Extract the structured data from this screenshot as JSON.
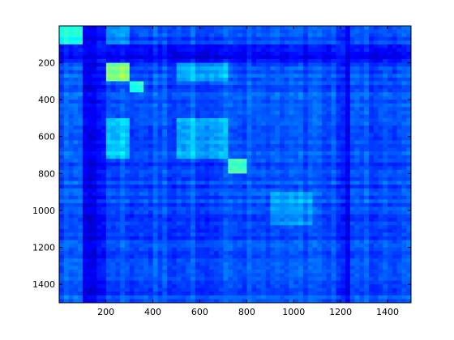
{
  "chart_data": {
    "type": "heatmap",
    "title": "",
    "xlabel": "",
    "ylabel": "",
    "xlim": [
      1,
      1500
    ],
    "ylim": [
      1,
      1500
    ],
    "y_axis_direction": "reversed",
    "grid": false,
    "colormap": "jet",
    "xticks": [
      {
        "value": 200,
        "label": "200"
      },
      {
        "value": 400,
        "label": "400"
      },
      {
        "value": 600,
        "label": "600"
      },
      {
        "value": 800,
        "label": "800"
      },
      {
        "value": 1000,
        "label": "1000"
      },
      {
        "value": 1200,
        "label": "1200"
      },
      {
        "value": 1400,
        "label": "1400"
      }
    ],
    "yticks": [
      {
        "value": 200,
        "label": "200"
      },
      {
        "value": 400,
        "label": "400"
      },
      {
        "value": 600,
        "label": "600"
      },
      {
        "value": 800,
        "label": "800"
      },
      {
        "value": 1000,
        "label": "1000"
      },
      {
        "value": 1200,
        "label": "1200"
      },
      {
        "value": 1400,
        "label": "1400"
      }
    ],
    "background_level": 0.2,
    "high_intensity_blocks": [
      {
        "x_range": [
          1,
          100
        ],
        "y_range": [
          1,
          100
        ],
        "level": 0.38
      },
      {
        "x_range": [
          200,
          300
        ],
        "y_range": [
          200,
          300
        ],
        "level": 0.5
      },
      {
        "x_range": [
          300,
          370
        ],
        "y_range": [
          300,
          370
        ],
        "level": 0.42
      },
      {
        "x_range": [
          500,
          720
        ],
        "y_range": [
          500,
          720
        ],
        "level": 0.3
      },
      {
        "x_range": [
          720,
          800
        ],
        "y_range": [
          720,
          800
        ],
        "level": 0.44
      },
      {
        "x_range": [
          900,
          1080
        ],
        "y_range": [
          900,
          1080
        ],
        "level": 0.27
      },
      {
        "x_range": [
          200,
          300
        ],
        "y_range": [
          500,
          720
        ],
        "level": 0.32
      },
      {
        "x_range": [
          500,
          720
        ],
        "y_range": [
          200,
          300
        ],
        "level": 0.3
      },
      {
        "x_range": [
          200,
          300
        ],
        "y_range": [
          1,
          100
        ],
        "level": 0.27
      }
    ],
    "low_intensity_bands": [
      {
        "axis": "x",
        "range": [
          100,
          200
        ],
        "level": 0.12
      },
      {
        "axis": "y",
        "range": [
          100,
          200
        ],
        "level": 0.12
      },
      {
        "axis": "x",
        "range": [
          1180,
          1240
        ],
        "level": 0.14
      }
    ]
  }
}
